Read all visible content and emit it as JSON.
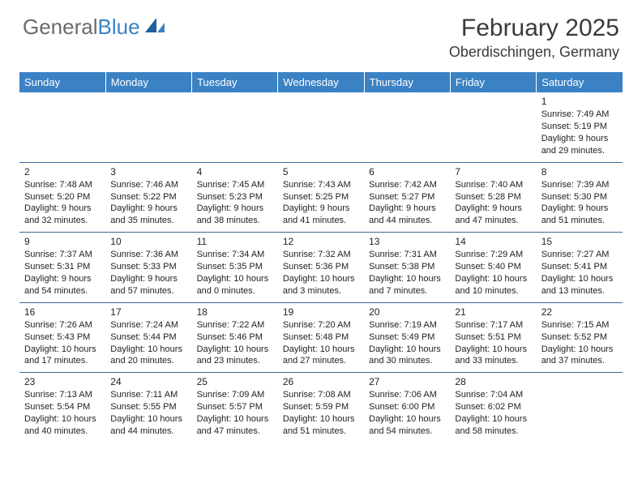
{
  "brand": {
    "word1": "General",
    "word2": "Blue"
  },
  "title": "February 2025",
  "location": "Oberdischingen, Germany",
  "colors": {
    "header_bg": "#3b82c4",
    "header_fg": "#ffffff",
    "rule": "#3a6a9a",
    "text": "#222222",
    "logo_gray": "#6b6b6b",
    "logo_blue": "#3b82c4",
    "background": "#ffffff"
  },
  "weekdays": [
    "Sunday",
    "Monday",
    "Tuesday",
    "Wednesday",
    "Thursday",
    "Friday",
    "Saturday"
  ],
  "weeks": [
    [
      {
        "day": "",
        "sunrise": "",
        "sunset": "",
        "daylight": ""
      },
      {
        "day": "",
        "sunrise": "",
        "sunset": "",
        "daylight": ""
      },
      {
        "day": "",
        "sunrise": "",
        "sunset": "",
        "daylight": ""
      },
      {
        "day": "",
        "sunrise": "",
        "sunset": "",
        "daylight": ""
      },
      {
        "day": "",
        "sunrise": "",
        "sunset": "",
        "daylight": ""
      },
      {
        "day": "",
        "sunrise": "",
        "sunset": "",
        "daylight": ""
      },
      {
        "day": "1",
        "sunrise": "Sunrise: 7:49 AM",
        "sunset": "Sunset: 5:19 PM",
        "daylight": "Daylight: 9 hours and 29 minutes."
      }
    ],
    [
      {
        "day": "2",
        "sunrise": "Sunrise: 7:48 AM",
        "sunset": "Sunset: 5:20 PM",
        "daylight": "Daylight: 9 hours and 32 minutes."
      },
      {
        "day": "3",
        "sunrise": "Sunrise: 7:46 AM",
        "sunset": "Sunset: 5:22 PM",
        "daylight": "Daylight: 9 hours and 35 minutes."
      },
      {
        "day": "4",
        "sunrise": "Sunrise: 7:45 AM",
        "sunset": "Sunset: 5:23 PM",
        "daylight": "Daylight: 9 hours and 38 minutes."
      },
      {
        "day": "5",
        "sunrise": "Sunrise: 7:43 AM",
        "sunset": "Sunset: 5:25 PM",
        "daylight": "Daylight: 9 hours and 41 minutes."
      },
      {
        "day": "6",
        "sunrise": "Sunrise: 7:42 AM",
        "sunset": "Sunset: 5:27 PM",
        "daylight": "Daylight: 9 hours and 44 minutes."
      },
      {
        "day": "7",
        "sunrise": "Sunrise: 7:40 AM",
        "sunset": "Sunset: 5:28 PM",
        "daylight": "Daylight: 9 hours and 47 minutes."
      },
      {
        "day": "8",
        "sunrise": "Sunrise: 7:39 AM",
        "sunset": "Sunset: 5:30 PM",
        "daylight": "Daylight: 9 hours and 51 minutes."
      }
    ],
    [
      {
        "day": "9",
        "sunrise": "Sunrise: 7:37 AM",
        "sunset": "Sunset: 5:31 PM",
        "daylight": "Daylight: 9 hours and 54 minutes."
      },
      {
        "day": "10",
        "sunrise": "Sunrise: 7:36 AM",
        "sunset": "Sunset: 5:33 PM",
        "daylight": "Daylight: 9 hours and 57 minutes."
      },
      {
        "day": "11",
        "sunrise": "Sunrise: 7:34 AM",
        "sunset": "Sunset: 5:35 PM",
        "daylight": "Daylight: 10 hours and 0 minutes."
      },
      {
        "day": "12",
        "sunrise": "Sunrise: 7:32 AM",
        "sunset": "Sunset: 5:36 PM",
        "daylight": "Daylight: 10 hours and 3 minutes."
      },
      {
        "day": "13",
        "sunrise": "Sunrise: 7:31 AM",
        "sunset": "Sunset: 5:38 PM",
        "daylight": "Daylight: 10 hours and 7 minutes."
      },
      {
        "day": "14",
        "sunrise": "Sunrise: 7:29 AM",
        "sunset": "Sunset: 5:40 PM",
        "daylight": "Daylight: 10 hours and 10 minutes."
      },
      {
        "day": "15",
        "sunrise": "Sunrise: 7:27 AM",
        "sunset": "Sunset: 5:41 PM",
        "daylight": "Daylight: 10 hours and 13 minutes."
      }
    ],
    [
      {
        "day": "16",
        "sunrise": "Sunrise: 7:26 AM",
        "sunset": "Sunset: 5:43 PM",
        "daylight": "Daylight: 10 hours and 17 minutes."
      },
      {
        "day": "17",
        "sunrise": "Sunrise: 7:24 AM",
        "sunset": "Sunset: 5:44 PM",
        "daylight": "Daylight: 10 hours and 20 minutes."
      },
      {
        "day": "18",
        "sunrise": "Sunrise: 7:22 AM",
        "sunset": "Sunset: 5:46 PM",
        "daylight": "Daylight: 10 hours and 23 minutes."
      },
      {
        "day": "19",
        "sunrise": "Sunrise: 7:20 AM",
        "sunset": "Sunset: 5:48 PM",
        "daylight": "Daylight: 10 hours and 27 minutes."
      },
      {
        "day": "20",
        "sunrise": "Sunrise: 7:19 AM",
        "sunset": "Sunset: 5:49 PM",
        "daylight": "Daylight: 10 hours and 30 minutes."
      },
      {
        "day": "21",
        "sunrise": "Sunrise: 7:17 AM",
        "sunset": "Sunset: 5:51 PM",
        "daylight": "Daylight: 10 hours and 33 minutes."
      },
      {
        "day": "22",
        "sunrise": "Sunrise: 7:15 AM",
        "sunset": "Sunset: 5:52 PM",
        "daylight": "Daylight: 10 hours and 37 minutes."
      }
    ],
    [
      {
        "day": "23",
        "sunrise": "Sunrise: 7:13 AM",
        "sunset": "Sunset: 5:54 PM",
        "daylight": "Daylight: 10 hours and 40 minutes."
      },
      {
        "day": "24",
        "sunrise": "Sunrise: 7:11 AM",
        "sunset": "Sunset: 5:55 PM",
        "daylight": "Daylight: 10 hours and 44 minutes."
      },
      {
        "day": "25",
        "sunrise": "Sunrise: 7:09 AM",
        "sunset": "Sunset: 5:57 PM",
        "daylight": "Daylight: 10 hours and 47 minutes."
      },
      {
        "day": "26",
        "sunrise": "Sunrise: 7:08 AM",
        "sunset": "Sunset: 5:59 PM",
        "daylight": "Daylight: 10 hours and 51 minutes."
      },
      {
        "day": "27",
        "sunrise": "Sunrise: 7:06 AM",
        "sunset": "Sunset: 6:00 PM",
        "daylight": "Daylight: 10 hours and 54 minutes."
      },
      {
        "day": "28",
        "sunrise": "Sunrise: 7:04 AM",
        "sunset": "Sunset: 6:02 PM",
        "daylight": "Daylight: 10 hours and 58 minutes."
      },
      {
        "day": "",
        "sunrise": "",
        "sunset": "",
        "daylight": ""
      }
    ]
  ]
}
